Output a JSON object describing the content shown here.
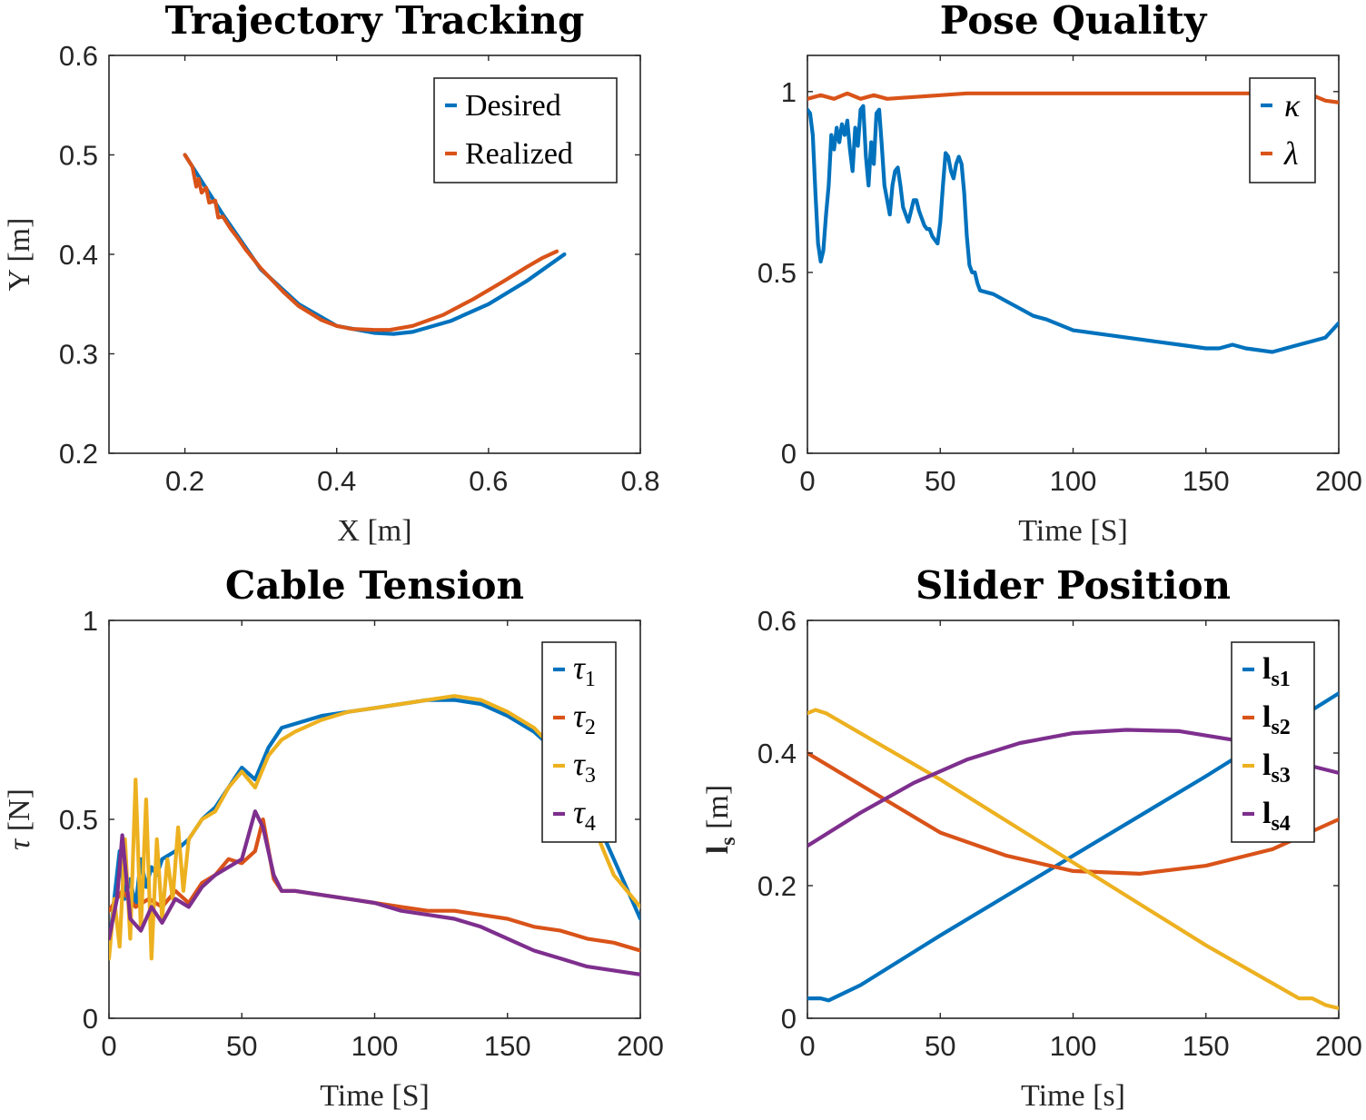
{
  "colors": [
    "#0072BD",
    "#D95319",
    "#EDB120",
    "#7E2F8E"
  ],
  "chart_data": [
    {
      "type": "line",
      "title": "Trajectory Tracking",
      "xlabel": "X [m]",
      "ylabel": "Y [m]",
      "xlim": [
        0.1,
        0.8
      ],
      "ylim": [
        0.2,
        0.6
      ],
      "xticks": [
        0.2,
        0.4,
        0.6,
        0.8
      ],
      "xticklabels": [
        "0.2",
        "0.4",
        "0.6",
        "0.8"
      ],
      "yticks": [
        0.2,
        0.3,
        0.4,
        0.5,
        0.6
      ],
      "yticklabels": [
        "0.2",
        "0.3",
        "0.4",
        "0.5",
        "0.6"
      ],
      "legend_placement": "top-right",
      "grid": false,
      "series": [
        {
          "name": "Desired",
          "color": "#0072BD",
          "x": [
            0.2,
            0.25,
            0.3,
            0.35,
            0.4,
            0.45,
            0.475,
            0.5,
            0.55,
            0.6,
            0.65,
            0.7
          ],
          "y": [
            0.5,
            0.44,
            0.385,
            0.35,
            0.328,
            0.321,
            0.32,
            0.322,
            0.333,
            0.35,
            0.373,
            0.4
          ]
        },
        {
          "name": "Realized",
          "color": "#D95319",
          "x": [
            0.2,
            0.21,
            0.215,
            0.218,
            0.222,
            0.228,
            0.232,
            0.24,
            0.244,
            0.25,
            0.26,
            0.27,
            0.28,
            0.3,
            0.33,
            0.35,
            0.38,
            0.4,
            0.42,
            0.45,
            0.47,
            0.5,
            0.54,
            0.58,
            0.62,
            0.65,
            0.67,
            0.69
          ],
          "y": [
            0.5,
            0.488,
            0.468,
            0.476,
            0.462,
            0.467,
            0.452,
            0.454,
            0.437,
            0.438,
            0.426,
            0.416,
            0.405,
            0.386,
            0.362,
            0.348,
            0.334,
            0.328,
            0.325,
            0.324,
            0.324,
            0.328,
            0.339,
            0.355,
            0.373,
            0.387,
            0.396,
            0.403
          ]
        }
      ]
    },
    {
      "type": "line",
      "title": "Pose Quality",
      "xlabel": "Time [S]",
      "ylabel": "",
      "xlim": [
        0,
        200
      ],
      "ylim": [
        0,
        1.1
      ],
      "xticks": [
        0,
        50,
        100,
        150,
        200
      ],
      "xticklabels": [
        "0",
        "50",
        "100",
        "150",
        "200"
      ],
      "yticks": [
        0,
        0.5,
        1
      ],
      "yticklabels": [
        "0",
        "0.5",
        "1"
      ],
      "legend_placement": "top-right",
      "grid": false,
      "series": [
        {
          "name": "κ",
          "color": "#0072BD",
          "x": [
            0,
            1,
            2,
            3,
            4,
            5,
            6,
            7,
            8,
            9,
            10,
            11,
            12,
            13,
            14,
            15,
            16,
            17,
            18,
            19,
            20,
            21,
            22,
            23,
            24,
            25,
            26,
            27,
            28,
            29,
            30,
            31,
            32,
            33,
            34,
            35,
            36,
            37,
            38,
            39,
            40,
            41,
            42,
            43,
            44,
            45,
            46,
            47,
            48,
            49,
            50,
            51,
            52,
            53,
            54,
            55,
            56,
            57,
            58,
            59,
            60,
            61,
            62,
            63,
            64,
            65,
            70,
            75,
            80,
            85,
            90,
            100,
            110,
            120,
            130,
            140,
            150,
            155,
            160,
            165,
            170,
            175,
            180,
            185,
            190,
            195,
            200
          ],
          "y": [
            0.95,
            0.94,
            0.88,
            0.72,
            0.58,
            0.53,
            0.56,
            0.66,
            0.74,
            0.88,
            0.84,
            0.9,
            0.86,
            0.91,
            0.88,
            0.92,
            0.84,
            0.78,
            0.9,
            0.85,
            0.95,
            0.96,
            0.82,
            0.74,
            0.86,
            0.8,
            0.94,
            0.95,
            0.85,
            0.74,
            0.7,
            0.66,
            0.74,
            0.78,
            0.79,
            0.74,
            0.68,
            0.66,
            0.64,
            0.67,
            0.7,
            0.7,
            0.67,
            0.65,
            0.63,
            0.62,
            0.62,
            0.6,
            0.59,
            0.58,
            0.64,
            0.74,
            0.83,
            0.82,
            0.78,
            0.76,
            0.8,
            0.82,
            0.8,
            0.72,
            0.6,
            0.52,
            0.5,
            0.5,
            0.47,
            0.45,
            0.44,
            0.42,
            0.4,
            0.38,
            0.37,
            0.34,
            0.33,
            0.32,
            0.31,
            0.3,
            0.29,
            0.29,
            0.3,
            0.29,
            0.285,
            0.28,
            0.29,
            0.3,
            0.31,
            0.32,
            0.36
          ]
        },
        {
          "name": "λ",
          "color": "#D95319",
          "x": [
            0,
            5,
            10,
            15,
            20,
            25,
            30,
            40,
            50,
            60,
            80,
            100,
            120,
            140,
            160,
            180,
            190,
            195,
            200
          ],
          "y": [
            0.98,
            0.99,
            0.98,
            0.995,
            0.98,
            0.99,
            0.98,
            0.985,
            0.99,
            0.995,
            0.995,
            0.995,
            0.995,
            0.995,
            0.995,
            0.995,
            0.99,
            0.975,
            0.97
          ]
        }
      ]
    },
    {
      "type": "line",
      "title": "Cable Tension",
      "xlabel": "Time [S]",
      "ylabel": "τ [N]",
      "xlim": [
        0,
        200
      ],
      "ylim": [
        0,
        1
      ],
      "xticks": [
        0,
        50,
        100,
        150,
        200
      ],
      "xticklabels": [
        "0",
        "50",
        "100",
        "150",
        "200"
      ],
      "yticks": [
        0,
        0.5,
        1
      ],
      "yticklabels": [
        "0",
        "0.5",
        "1"
      ],
      "legend_placement": "top-right",
      "grid": false,
      "series": [
        {
          "name": "τ1",
          "color": "#0072BD",
          "x": [
            0,
            2,
            4,
            6,
            8,
            10,
            12,
            14,
            16,
            18,
            20,
            25,
            30,
            35,
            40,
            45,
            50,
            55,
            60,
            65,
            70,
            80,
            90,
            100,
            110,
            120,
            130,
            140,
            150,
            160,
            170,
            180,
            190,
            200
          ],
          "y": [
            0.18,
            0.3,
            0.42,
            0.3,
            0.35,
            0.28,
            0.4,
            0.33,
            0.38,
            0.36,
            0.4,
            0.42,
            0.45,
            0.5,
            0.53,
            0.58,
            0.63,
            0.6,
            0.68,
            0.73,
            0.74,
            0.76,
            0.77,
            0.78,
            0.79,
            0.8,
            0.8,
            0.79,
            0.76,
            0.72,
            0.66,
            0.55,
            0.4,
            0.25
          ]
        },
        {
          "name": "τ2",
          "color": "#D95319",
          "x": [
            0,
            5,
            10,
            15,
            20,
            25,
            30,
            35,
            40,
            45,
            50,
            55,
            58,
            62,
            65,
            70,
            80,
            90,
            100,
            110,
            120,
            130,
            140,
            150,
            160,
            170,
            180,
            190,
            200
          ],
          "y": [
            0.27,
            0.32,
            0.28,
            0.3,
            0.28,
            0.32,
            0.29,
            0.34,
            0.36,
            0.4,
            0.39,
            0.42,
            0.5,
            0.35,
            0.32,
            0.32,
            0.31,
            0.3,
            0.29,
            0.28,
            0.27,
            0.27,
            0.26,
            0.25,
            0.23,
            0.22,
            0.2,
            0.19,
            0.17
          ]
        },
        {
          "name": "τ3",
          "color": "#EDB120",
          "x": [
            0,
            2,
            4,
            6,
            8,
            10,
            12,
            14,
            16,
            18,
            20,
            22,
            24,
            26,
            28,
            30,
            35,
            40,
            45,
            50,
            55,
            60,
            65,
            70,
            80,
            90,
            100,
            110,
            120,
            130,
            140,
            150,
            160,
            170,
            180,
            190,
            200
          ],
          "y": [
            0.15,
            0.3,
            0.18,
            0.45,
            0.2,
            0.6,
            0.22,
            0.55,
            0.15,
            0.45,
            0.25,
            0.4,
            0.3,
            0.48,
            0.32,
            0.45,
            0.5,
            0.52,
            0.58,
            0.62,
            0.58,
            0.66,
            0.7,
            0.72,
            0.75,
            0.77,
            0.78,
            0.79,
            0.8,
            0.81,
            0.8,
            0.77,
            0.73,
            0.66,
            0.52,
            0.36,
            0.28
          ]
        },
        {
          "name": "τ4",
          "color": "#7E2F8E",
          "x": [
            0,
            3,
            5,
            8,
            12,
            16,
            20,
            25,
            30,
            35,
            40,
            45,
            50,
            55,
            58,
            62,
            65,
            70,
            80,
            90,
            100,
            110,
            120,
            130,
            140,
            150,
            160,
            170,
            180,
            190,
            200
          ],
          "y": [
            0.2,
            0.3,
            0.46,
            0.25,
            0.22,
            0.28,
            0.24,
            0.3,
            0.28,
            0.33,
            0.36,
            0.38,
            0.4,
            0.52,
            0.48,
            0.36,
            0.32,
            0.32,
            0.31,
            0.3,
            0.29,
            0.27,
            0.26,
            0.25,
            0.23,
            0.2,
            0.17,
            0.15,
            0.13,
            0.12,
            0.11
          ]
        }
      ]
    },
    {
      "type": "line",
      "title": "Slider Position",
      "xlabel": "Time [s]",
      "ylabel": "ls [m]",
      "xlim": [
        0,
        200
      ],
      "ylim": [
        0,
        0.6
      ],
      "xticks": [
        0,
        50,
        100,
        150,
        200
      ],
      "xticklabels": [
        "0",
        "50",
        "100",
        "150",
        "200"
      ],
      "yticks": [
        0,
        0.2,
        0.4,
        0.6
      ],
      "yticklabels": [
        "0",
        "0.2",
        "0.4",
        "0.6"
      ],
      "legend_placement": "top-right",
      "grid": false,
      "series": [
        {
          "name": "ls1",
          "color": "#0072BD",
          "x": [
            0,
            5,
            8,
            20,
            50,
            100,
            150,
            200
          ],
          "y": [
            0.03,
            0.03,
            0.027,
            0.05,
            0.125,
            0.245,
            0.365,
            0.49
          ]
        },
        {
          "name": "ls2",
          "color": "#D95319",
          "x": [
            0,
            25,
            50,
            75,
            100,
            125,
            150,
            175,
            200
          ],
          "y": [
            0.4,
            0.34,
            0.28,
            0.245,
            0.222,
            0.218,
            0.23,
            0.255,
            0.3
          ]
        },
        {
          "name": "ls3",
          "color": "#EDB120",
          "x": [
            0,
            3,
            7,
            50,
            100,
            150,
            185,
            190,
            195,
            200
          ],
          "y": [
            0.46,
            0.465,
            0.46,
            0.36,
            0.235,
            0.11,
            0.03,
            0.03,
            0.02,
            0.015
          ]
        },
        {
          "name": "ls4",
          "color": "#7E2F8E",
          "x": [
            0,
            20,
            40,
            60,
            80,
            100,
            120,
            140,
            160,
            180,
            190,
            200
          ],
          "y": [
            0.26,
            0.31,
            0.355,
            0.39,
            0.415,
            0.43,
            0.435,
            0.433,
            0.42,
            0.4,
            0.38,
            0.37
          ]
        }
      ]
    }
  ]
}
